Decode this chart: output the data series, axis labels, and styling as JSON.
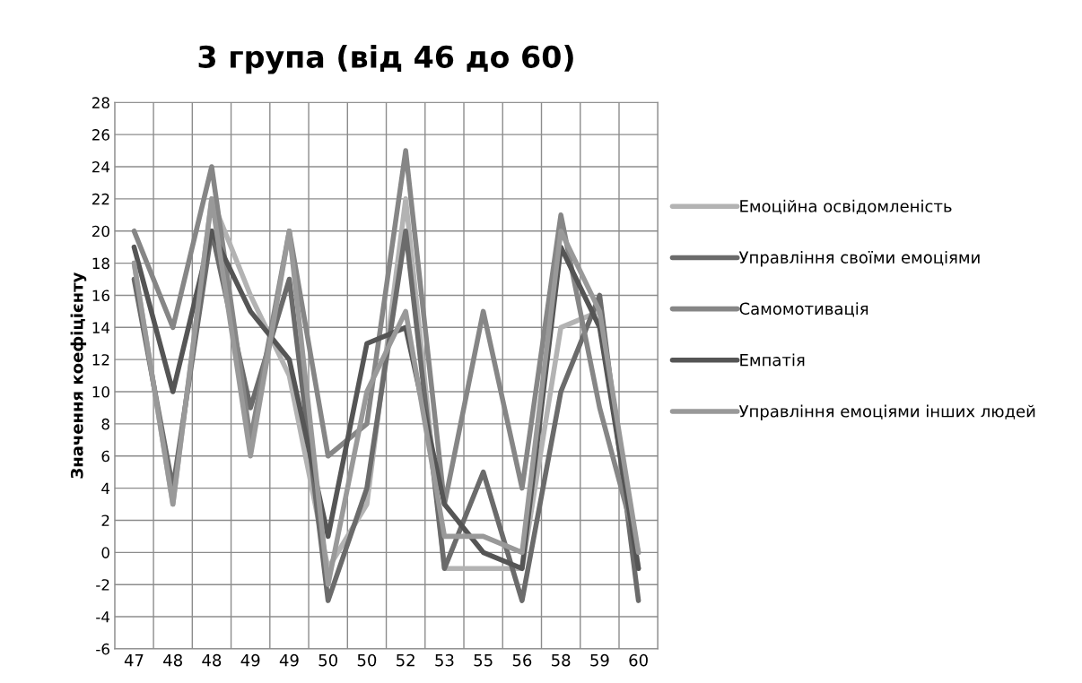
{
  "chart_data": {
    "type": "line",
    "title": "3 група (від 46 до 60)",
    "ylabel": "Значення коефіцієнту",
    "categories": [
      "47",
      "48",
      "48",
      "49",
      "49",
      "50",
      "50",
      "52",
      "53",
      "55",
      "56",
      "58",
      "59",
      "60"
    ],
    "series": [
      {
        "name": "Емоційна освідомленість",
        "color": "#b3b3b3",
        "values": [
          18,
          3,
          22,
          16,
          11,
          -1,
          3,
          22,
          -1,
          -1,
          -1,
          14,
          15,
          -1
        ]
      },
      {
        "name": "Управління своїми емоціями",
        "color": "#6b6b6b",
        "values": [
          17,
          4,
          20,
          9,
          17,
          -3,
          4,
          20,
          -1,
          5,
          -3,
          10,
          16,
          -3
        ]
      },
      {
        "name": "Самомотивація",
        "color": "#868686",
        "values": [
          20,
          14,
          24,
          7,
          20,
          6,
          8,
          25,
          3,
          15,
          4,
          21,
          9,
          0
        ]
      },
      {
        "name": "Емпатія",
        "color": "#555555",
        "values": [
          19,
          10,
          20,
          15,
          12,
          1,
          13,
          14,
          3,
          0,
          -1,
          19,
          14,
          -1
        ]
      },
      {
        "name": "Управління емоціями інших людей",
        "color": "#999999",
        "values": [
          18,
          3,
          22,
          6,
          20,
          -2,
          10,
          15,
          1,
          1,
          0,
          20,
          15,
          0
        ]
      }
    ],
    "ylim": [
      -6,
      28
    ],
    "yticks": [
      -6,
      -4,
      -2,
      0,
      2,
      4,
      6,
      8,
      10,
      12,
      14,
      16,
      18,
      20,
      22,
      24,
      26,
      28
    ],
    "grid": true,
    "legend": "right",
    "marker": "none",
    "line_style": "solid"
  }
}
